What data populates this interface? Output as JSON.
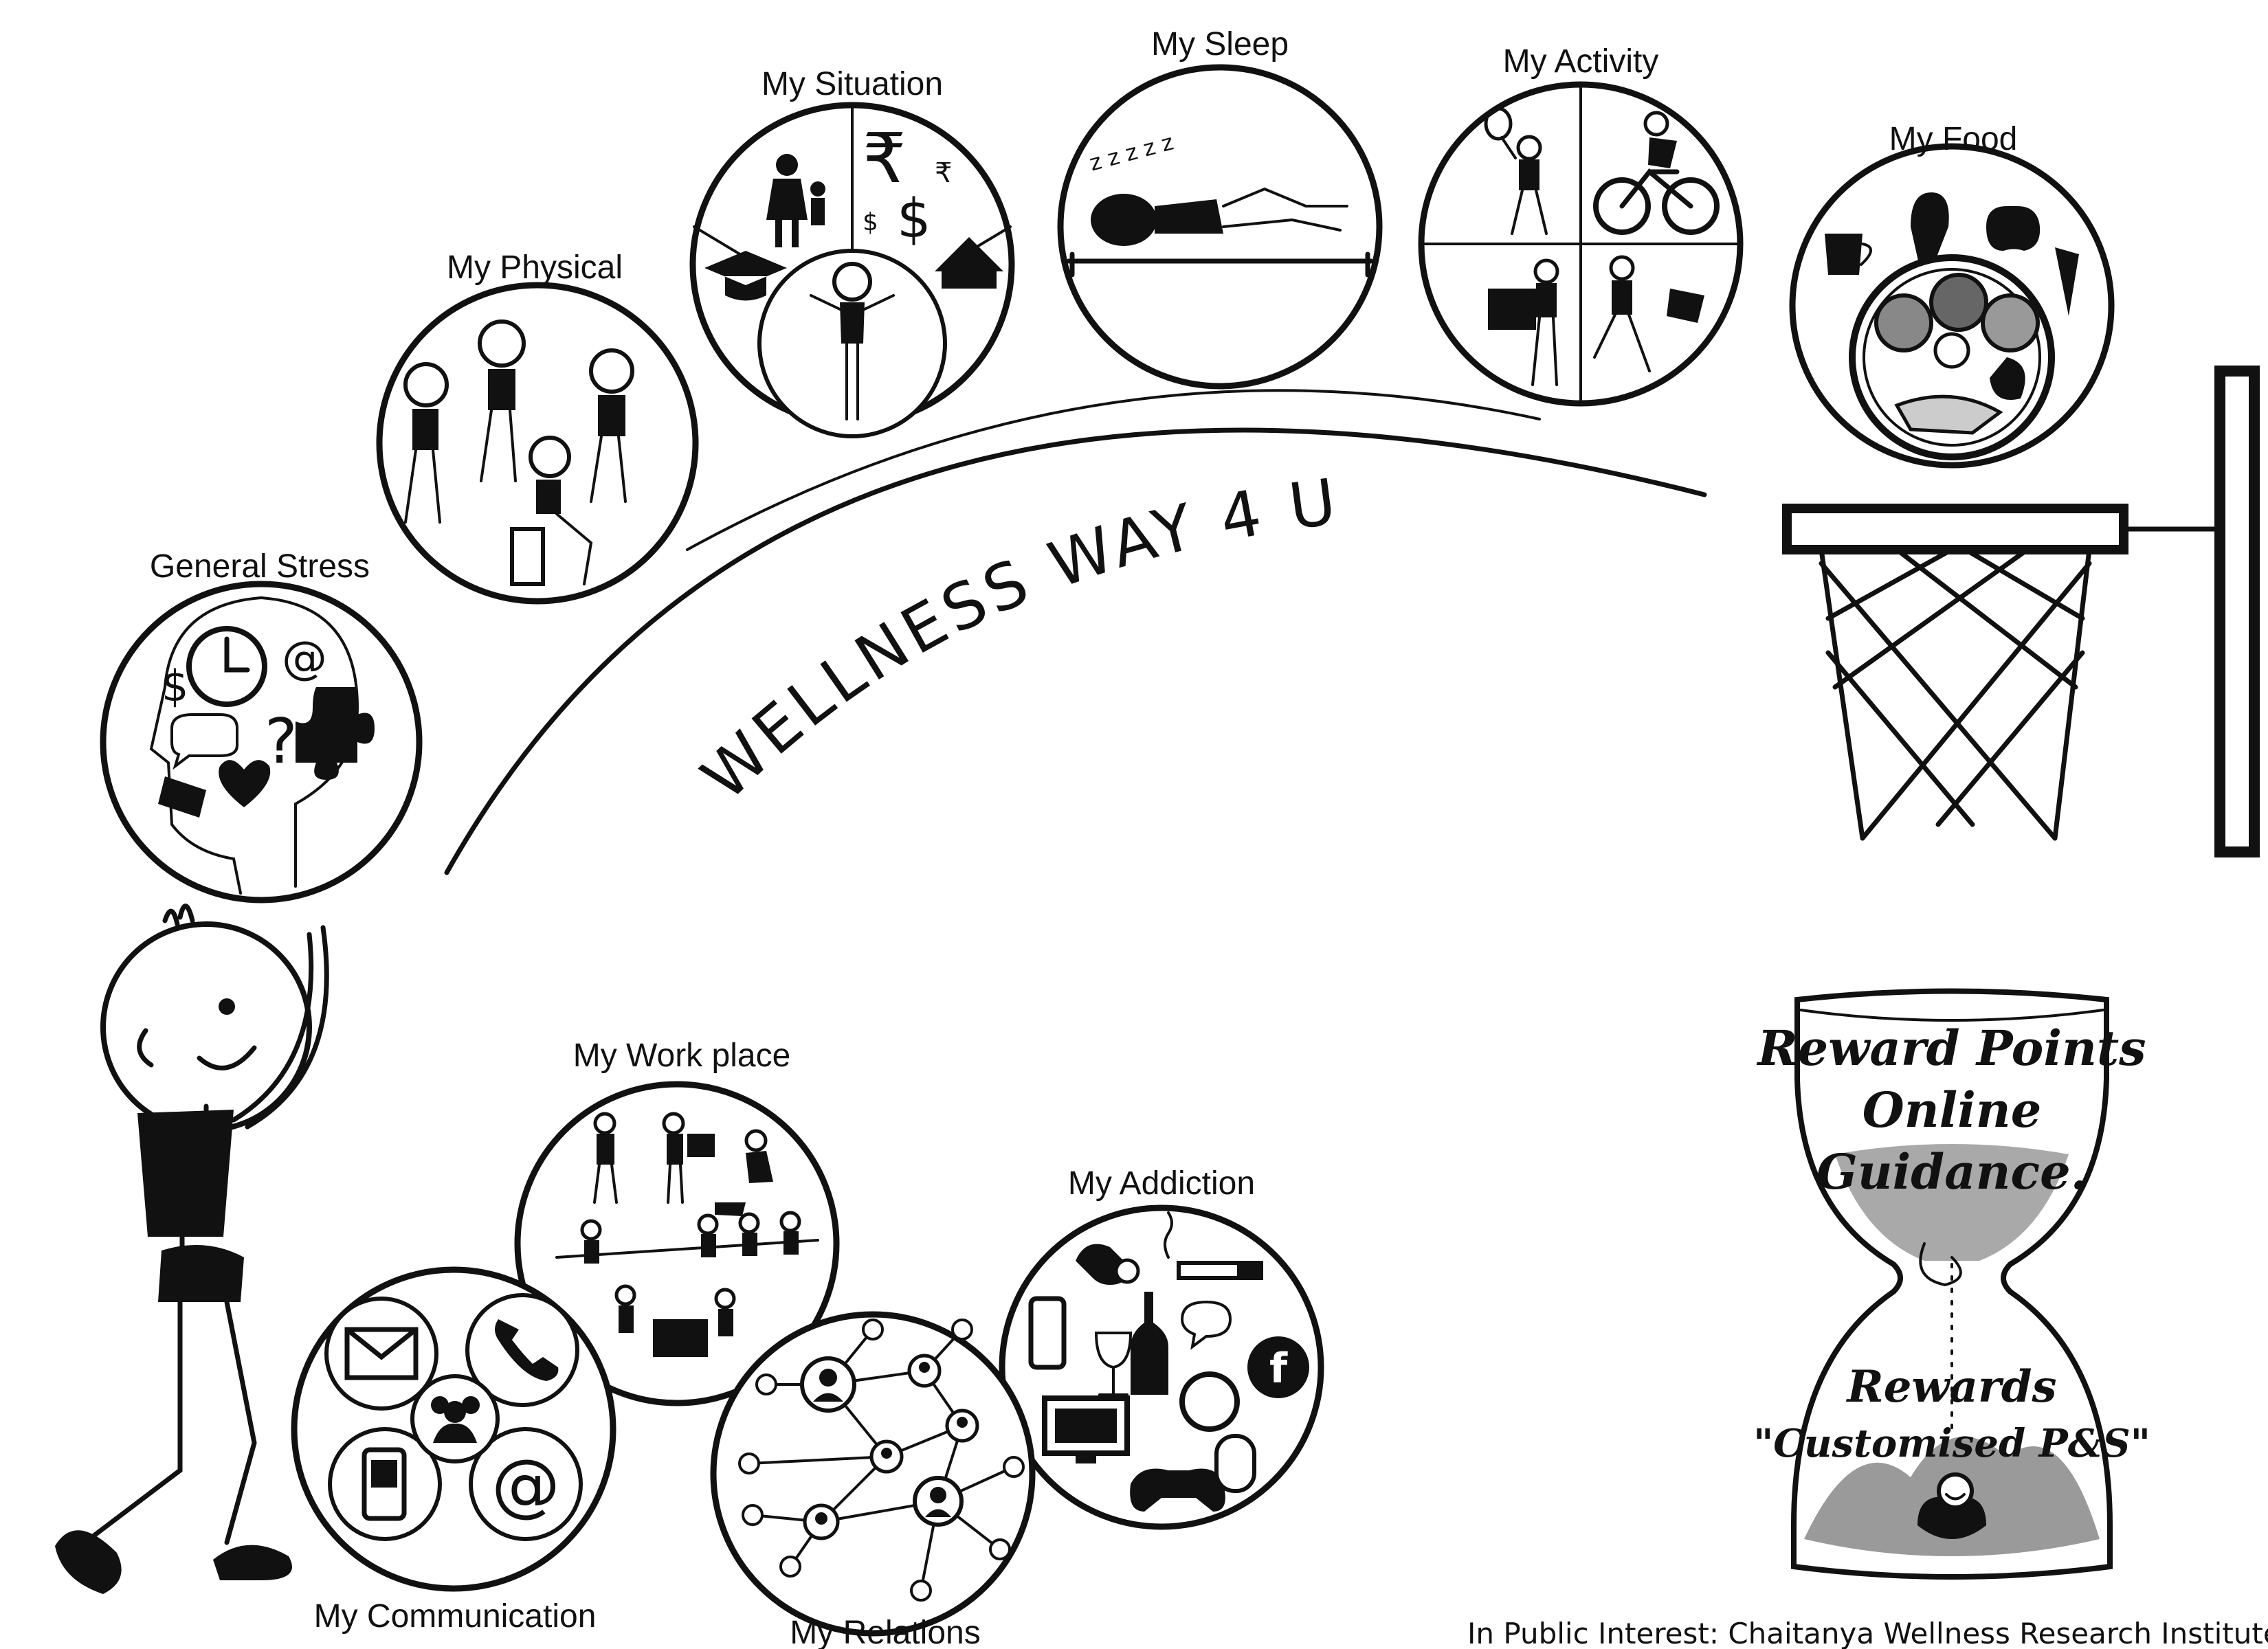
{
  "banner": {
    "title": "WELLNESS WAY 4 U"
  },
  "circles": {
    "general_stress": "General Stress",
    "physical": "My Physical",
    "situation": "My Situation",
    "sleep": "My Sleep",
    "activity": "My Activity",
    "food": "My Food",
    "work_place": "My Work place",
    "addiction": "My Addiction",
    "communication": "My Communication",
    "relations": "My Relations"
  },
  "icon_glyphs": {
    "dollar": "$",
    "rupee": "₹",
    "at": "@",
    "question": "?",
    "zzz": "z z z z z",
    "facebook": "f"
  },
  "hourglass": {
    "line1": "Reward Points",
    "line2": "Online",
    "line3": "Guidance.",
    "line4": "Rewards",
    "line5": "\"Customised P&S\""
  },
  "footer": {
    "credit": "In Public Interest: Chaitanya Wellness Research Institute"
  },
  "colors": {
    "ink": "#111111",
    "background": "#ffffff",
    "sand": "#9a9a9a"
  }
}
